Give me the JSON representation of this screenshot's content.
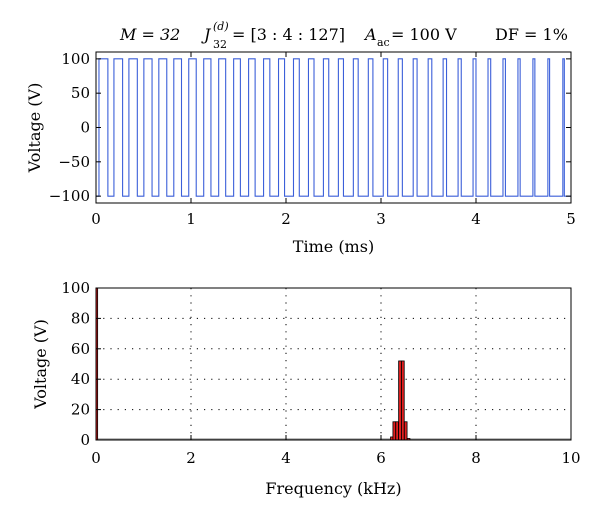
{
  "chart_data": [
    {
      "type": "line",
      "title": "",
      "header": {
        "m": "M = 32",
        "j_main": "J",
        "j_sup": "(d)",
        "j_sub": "32",
        "j_rest": " = [3 : 4 : 127]",
        "a_main": "A",
        "a_sub": "ac",
        "a_rest": " = 100 V",
        "df": "DF = 1%"
      },
      "xlabel": "Time (ms)",
      "ylabel": "Voltage (V)",
      "xlim": [
        0,
        5
      ],
      "ylim": [
        -110,
        110
      ],
      "x_ticks": [
        0,
        1,
        2,
        3,
        4,
        5
      ],
      "y_ticks": [
        -100,
        -50,
        0,
        50,
        100
      ],
      "grid": false,
      "line_color": "#3b5fd9",
      "waveform": {
        "amplitude": 100,
        "period_ms": 0.15625,
        "cycles": 32,
        "description_values": "square wave switching between +100 V and -100 V"
      }
    },
    {
      "type": "bar",
      "xlabel": "Frequency (kHz)",
      "ylabel": "Voltage (V)",
      "xlim": [
        0,
        10
      ],
      "ylim": [
        0,
        100
      ],
      "x_ticks": [
        0,
        2,
        4,
        6,
        8,
        10
      ],
      "y_ticks": [
        0,
        20,
        40,
        60,
        80,
        100
      ],
      "grid": true,
      "bar_color": "#e02020",
      "bars": [
        {
          "x": 0.0,
          "y": 100
        },
        {
          "x": 6.23,
          "y": 2
        },
        {
          "x": 6.28,
          "y": 12
        },
        {
          "x": 6.34,
          "y": 12
        },
        {
          "x": 6.4,
          "y": 52
        },
        {
          "x": 6.46,
          "y": 52
        },
        {
          "x": 6.52,
          "y": 12
        },
        {
          "x": 6.58,
          "y": 1
        }
      ]
    }
  ]
}
